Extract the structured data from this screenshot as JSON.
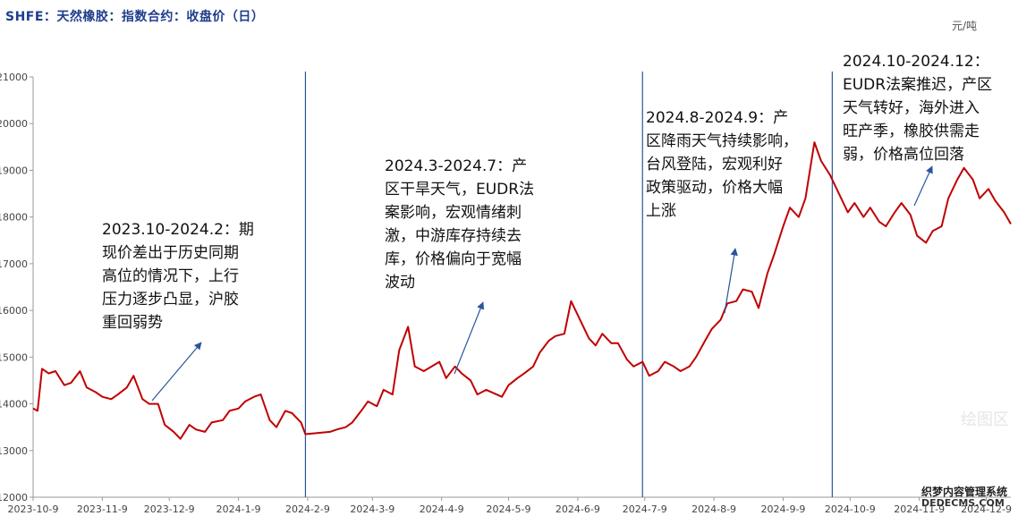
{
  "header": {
    "title": "SHFE：天然橡胶：指数合约：收盘价（日）",
    "unit": "元/吨"
  },
  "annotations": [
    {
      "id": "ann-1",
      "text": "2023.10-2024.2：期\n现价差出于历史同期\n高位的情况下，上行\n压力逐步凸显，沪胶\n重回弱势"
    },
    {
      "id": "ann-2",
      "text": "2024.3-2024.7：产\n区干旱天气，EUDR法\n案影响，宏观情绪刺\n激，中游库存持续去\n库，价格偏向于宽幅\n波动"
    },
    {
      "id": "ann-3",
      "text": "2024.8-2024.9：产\n区降雨天气持续影响，\n台风登陆，宏观利好\n政策驱动，价格大幅\n上涨"
    },
    {
      "id": "ann-4",
      "text": "2024.10-2024.12：\nEUDR法案推迟，产区\n天气转好，海外进入\n旺产季，橡胶供需走\n弱，价格高位回落"
    }
  ],
  "watermarks": {
    "brand1": "绘图区",
    "brand2": "织梦内容管理系统",
    "brand3": "DEDECMS.COM"
  },
  "colors": {
    "line": "#c00000",
    "vline": "#2a5599",
    "arrow": "#2a5599",
    "title": "#1f3d8c"
  },
  "chart_data": {
    "type": "line",
    "title": "SHFE：天然橡胶：指数合约：收盘价（日）",
    "ylabel": "元/吨",
    "ylim": [
      12000,
      21000
    ],
    "y_ticks": [
      "12000",
      "13000",
      "14000",
      "15000",
      "16000",
      "17000",
      "18000",
      "19000",
      "20000",
      "21000"
    ],
    "y_tick_values": [
      12000,
      13000,
      14000,
      15000,
      16000,
      17000,
      18000,
      19000,
      20000,
      21000
    ],
    "x_ticks": [
      "2023-10-9",
      "2023-11-9",
      "2023-12-9",
      "2024-1-9",
      "2024-2-9",
      "2024-3-9",
      "2024-4-9",
      "2024-5-9",
      "2024-6-9",
      "2024-7-9",
      "2024-8-9",
      "2024-9-9",
      "2024-10-9",
      "2024-11-9",
      "2024-12-9"
    ],
    "x_tick_dates": [
      "2023-10-09",
      "2023-11-09",
      "2023-12-09",
      "2024-01-09",
      "2024-02-09",
      "2024-03-09",
      "2024-04-09",
      "2024-05-09",
      "2024-06-09",
      "2024-07-09",
      "2024-08-09",
      "2024-09-09",
      "2024-10-09",
      "2024-11-09",
      "2024-12-09"
    ],
    "x_range": [
      "2023-10-09",
      "2024-12-20"
    ],
    "vertical_markers": [
      "2024-02-08",
      "2024-07-08",
      "2024-10-01"
    ],
    "series": [
      {
        "x": [
          "2023-10-09",
          "2023-10-11",
          "2023-10-13",
          "2023-10-16",
          "2023-10-19",
          "2023-10-23",
          "2023-10-26",
          "2023-10-30",
          "2023-11-02",
          "2023-11-06",
          "2023-11-09",
          "2023-11-13",
          "2023-11-16",
          "2023-11-20",
          "2023-11-23",
          "2023-11-27",
          "2023-11-30",
          "2023-12-04",
          "2023-12-07",
          "2023-12-11",
          "2023-12-14",
          "2023-12-18",
          "2023-12-21",
          "2023-12-25",
          "2023-12-28",
          "2024-01-02",
          "2024-01-05",
          "2024-01-09",
          "2024-01-12",
          "2024-01-16",
          "2024-01-19",
          "2024-01-23",
          "2024-01-26",
          "2024-01-30",
          "2024-02-02",
          "2024-02-06",
          "2024-02-08",
          "2024-02-19",
          "2024-02-22",
          "2024-02-26",
          "2024-02-29",
          "2024-03-04",
          "2024-03-07",
          "2024-03-11",
          "2024-03-14",
          "2024-03-18",
          "2024-03-21",
          "2024-03-25",
          "2024-03-28",
          "2024-04-01",
          "2024-04-08",
          "2024-04-11",
          "2024-04-15",
          "2024-04-18",
          "2024-04-22",
          "2024-04-25",
          "2024-04-29",
          "2024-05-06",
          "2024-05-09",
          "2024-05-13",
          "2024-05-16",
          "2024-05-20",
          "2024-05-23",
          "2024-05-27",
          "2024-05-30",
          "2024-06-03",
          "2024-06-06",
          "2024-06-11",
          "2024-06-14",
          "2024-06-17",
          "2024-06-20",
          "2024-06-24",
          "2024-06-27",
          "2024-07-01",
          "2024-07-04",
          "2024-07-08",
          "2024-07-11",
          "2024-07-15",
          "2024-07-18",
          "2024-07-22",
          "2024-07-25",
          "2024-07-29",
          "2024-08-01",
          "2024-08-05",
          "2024-08-08",
          "2024-08-12",
          "2024-08-15",
          "2024-08-19",
          "2024-08-22",
          "2024-08-26",
          "2024-08-29",
          "2024-09-02",
          "2024-09-05",
          "2024-09-09",
          "2024-09-12",
          "2024-09-16",
          "2024-09-19",
          "2024-09-23",
          "2024-09-26",
          "2024-09-30",
          "2024-10-08",
          "2024-10-11",
          "2024-10-15",
          "2024-10-18",
          "2024-10-22",
          "2024-10-25",
          "2024-10-29",
          "2024-11-01",
          "2024-11-05",
          "2024-11-08",
          "2024-11-12",
          "2024-11-15",
          "2024-11-19",
          "2024-11-22",
          "2024-11-26",
          "2024-11-29",
          "2024-12-03",
          "2024-12-06",
          "2024-12-10",
          "2024-12-13",
          "2024-12-17",
          "2024-12-20"
        ],
        "y": [
          13900,
          13850,
          14750,
          14650,
          14700,
          14400,
          14450,
          14700,
          14350,
          14250,
          14150,
          14100,
          14200,
          14350,
          14600,
          14100,
          14000,
          14000,
          13550,
          13400,
          13250,
          13550,
          13450,
          13400,
          13600,
          13650,
          13850,
          13900,
          14050,
          14150,
          14200,
          13650,
          13500,
          13850,
          13800,
          13600,
          13350,
          13400,
          13450,
          13500,
          13600,
          13850,
          14050,
          13950,
          14300,
          14200,
          15150,
          15650,
          14800,
          14700,
          14900,
          14550,
          14800,
          14650,
          14500,
          14200,
          14300,
          14150,
          14400,
          14550,
          14650,
          14800,
          15100,
          15350,
          15450,
          15500,
          16200,
          15700,
          15400,
          15250,
          15500,
          15300,
          15300,
          14950,
          14800,
          14900,
          14600,
          14700,
          14900,
          14800,
          14700,
          14800,
          15000,
          15350,
          15600,
          15800,
          16150,
          16200,
          16450,
          16400,
          16050,
          16800,
          17200,
          17800,
          18200,
          18000,
          18400,
          19600,
          19200,
          18900,
          18100,
          18300,
          18000,
          18200,
          17900,
          17800,
          18100,
          18300,
          18050,
          17600,
          17450,
          17700,
          17800,
          18400,
          18800,
          19050,
          18800,
          18400,
          18600,
          18350,
          18100,
          17850
        ]
      }
    ]
  }
}
